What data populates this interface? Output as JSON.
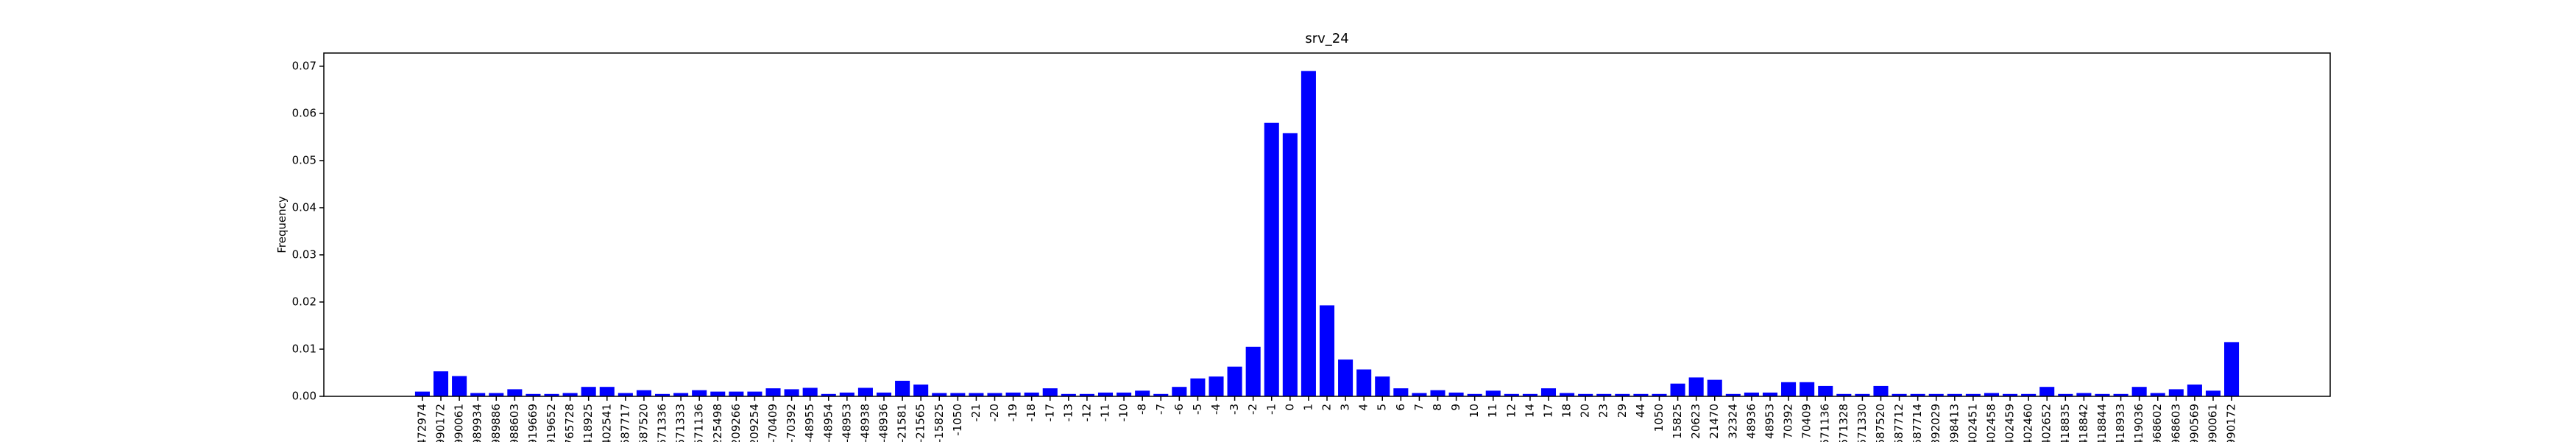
{
  "chart_data": {
    "type": "bar",
    "title": "srv_24",
    "y_label": "Frequency",
    "color": "#0000ff",
    "categories": [
      "472974",
      "990172",
      "990061",
      "989934",
      "989886",
      "988603",
      "919669",
      "919652",
      "765728",
      "418925",
      "402541",
      "587717",
      "587520",
      "571336",
      "571333",
      "571136",
      "225498",
      "209266",
      "209254",
      "-70409",
      "-70392",
      "-48955",
      "-48954",
      "-48953",
      "-48938",
      "-48936",
      "-21581",
      "-21565",
      "-15825",
      "-1050",
      "-21",
      "-20",
      "-19",
      "-18",
      "-17",
      "-13",
      "-12",
      "-11",
      "-10",
      "-8",
      "-7",
      "-6",
      "-5",
      "-4",
      "-3",
      "-2",
      "-1",
      "0",
      "1",
      "2",
      "3",
      "4",
      "5",
      "6",
      "7",
      "8",
      "9",
      "10",
      "11",
      "12",
      "14",
      "17",
      "18",
      "20",
      "23",
      "29",
      "44",
      "1050",
      "15825",
      "20623",
      "21470",
      "32324",
      "48936",
      "48953",
      "70392",
      "70409",
      "571136",
      "571328",
      "571330",
      "587520",
      "587712",
      "587714",
      "392029",
      "398413",
      "402451",
      "402458",
      "402459",
      "402460",
      "402652",
      "418835",
      "418842",
      "418844",
      "418933",
      "419036",
      "968602",
      "968603",
      "990569",
      "990061",
      "990172"
    ],
    "values": [
      0.001,
      0.0053,
      0.0043,
      0.0007,
      0.0007,
      0.0015,
      0.0005,
      0.0005,
      0.0007,
      0.002,
      0.002,
      0.0007,
      0.0013,
      0.0005,
      0.0007,
      0.0013,
      0.001,
      0.001,
      0.001,
      0.0017,
      0.0015,
      0.0018,
      0.0005,
      0.0008,
      0.0018,
      0.0008,
      0.0033,
      0.0025,
      0.0007,
      0.0007,
      0.0007,
      0.0007,
      0.0008,
      0.0008,
      0.0017,
      0.0005,
      0.0005,
      0.0008,
      0.0008,
      0.0012,
      0.0005,
      0.002,
      0.0038,
      0.0042,
      0.0063,
      0.0105,
      0.058,
      0.0558,
      0.069,
      0.0193,
      0.0078,
      0.0057,
      0.0042,
      0.0017,
      0.0007,
      0.0013,
      0.0008,
      0.0005,
      0.0012,
      0.0005,
      0.0005,
      0.0017,
      0.0007,
      0.0005,
      0.0005,
      0.0005,
      0.0005,
      0.0005,
      0.0027,
      0.004,
      0.0035,
      0.0005,
      0.0008,
      0.0008,
      0.003,
      0.003,
      0.0022,
      0.0005,
      0.0005,
      0.0022,
      0.0005,
      0.0005,
      0.0005,
      0.0005,
      0.0005,
      0.0007,
      0.0005,
      0.0005,
      0.002,
      0.0005,
      0.0007,
      0.0005,
      0.0005,
      0.002,
      0.0007,
      0.0015,
      0.0025,
      0.0012,
      0.0115
    ],
    "ylim": [
      0,
      0.0728
    ],
    "yticks": [
      {
        "value": 0,
        "label": "0.00"
      },
      {
        "value": 0.01,
        "label": "0.01"
      },
      {
        "value": 0.02,
        "label": "0.02"
      },
      {
        "value": 0.03,
        "label": "0.03"
      },
      {
        "value": 0.04,
        "label": "0.04"
      },
      {
        "value": 0.05,
        "label": "0.05"
      },
      {
        "value": 0.06,
        "label": "0.06"
      },
      {
        "value": 0.07,
        "label": "0.07"
      }
    ]
  }
}
